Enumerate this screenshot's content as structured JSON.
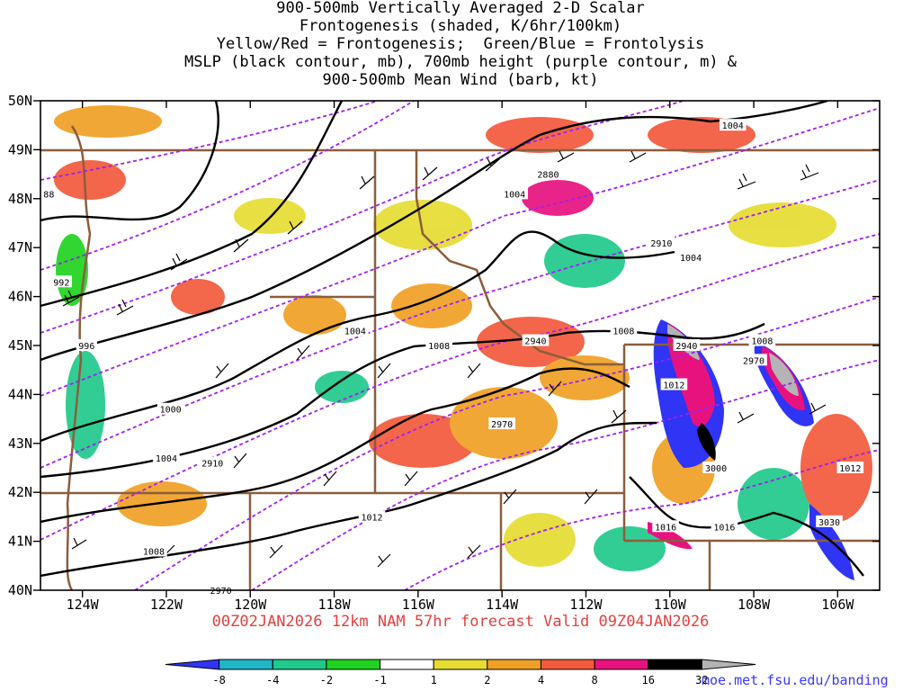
{
  "title_lines": [
    "900-500mb Vertically Averaged 2-D Scalar",
    "Frontogenesis (shaded, K/6hr/100km)",
    "Yellow/Red = Frontogenesis;  Green/Blue = Frontolysis",
    "MSLP (black contour, mb), 700mb height (purple contour, m) &",
    "900-500mb Mean Wind (barb, kt)"
  ],
  "forecast_line": "00Z02JAN2026 12km NAM 57hr forecast Valid 09Z04JAN2026",
  "credit": "moe.met.fsu.edu/banding",
  "map": {
    "lon_range": [
      -125,
      -105
    ],
    "lat_range": [
      40,
      50
    ],
    "lon_ticks": [
      "124W",
      "122W",
      "120W",
      "118W",
      "116W",
      "114W",
      "112W",
      "110W",
      "108W",
      "106W"
    ],
    "lat_ticks": [
      "50N",
      "49N",
      "48N",
      "47N",
      "46N",
      "45N",
      "44N",
      "43N",
      "42N",
      "41N",
      "40N"
    ]
  },
  "colorbar": {
    "labels": [
      "-8",
      "-4",
      "-2",
      "-1",
      "1",
      "2",
      "4",
      "8",
      "16",
      "32"
    ],
    "colors": [
      "#2f34f5",
      "#1fb6c8",
      "#20c98b",
      "#1fd21f",
      "#ffffff",
      "#e6dc32",
      "#f0a024",
      "#f25a3c",
      "#e8127e",
      "#000000",
      "#b4b4b4"
    ]
  },
  "colors": {
    "height_contour": "#a020f0",
    "mslp_contour": "#000000",
    "borders": "#8b5e3c"
  },
  "mslp_labels": [
    {
      "text": "1004",
      "lon": -108.5,
      "lat": 49.5
    },
    {
      "text": "1004",
      "lon": -113.7,
      "lat": 48.1
    },
    {
      "text": "1004",
      "lon": -109.5,
      "lat": 46.8
    },
    {
      "text": "1004",
      "lon": -117.5,
      "lat": 45.3
    },
    {
      "text": "1008",
      "lon": -115.5,
      "lat": 45.0
    },
    {
      "text": "1008",
      "lon": -111.1,
      "lat": 45.3
    },
    {
      "text": "1008",
      "lon": -107.8,
      "lat": 45.1
    },
    {
      "text": "1012",
      "lon": -109.9,
      "lat": 44.2
    },
    {
      "text": "1012",
      "lon": -105.7,
      "lat": 42.5
    },
    {
      "text": "1012",
      "lon": -117.1,
      "lat": 41.5
    },
    {
      "text": "1016",
      "lon": -110.1,
      "lat": 41.3
    },
    {
      "text": "1016",
      "lon": -108.7,
      "lat": 41.3
    },
    {
      "text": "1008",
      "lon": -122.3,
      "lat": 40.8
    },
    {
      "text": "1004",
      "lon": -122.0,
      "lat": 42.7
    },
    {
      "text": "1000",
      "lon": -121.9,
      "lat": 43.7
    },
    {
      "text": "996",
      "lon": -123.9,
      "lat": 45.0
    },
    {
      "text": "992",
      "lon": -124.5,
      "lat": 46.3
    },
    {
      "text": "88",
      "lon": -124.8,
      "lat": 48.1
    }
  ],
  "height_labels": [
    {
      "text": "2880",
      "lon": -112.9,
      "lat": 48.5
    },
    {
      "text": "2910",
      "lon": -110.2,
      "lat": 47.1
    },
    {
      "text": "2940",
      "lon": -113.2,
      "lat": 45.1
    },
    {
      "text": "2940",
      "lon": -109.6,
      "lat": 45.0
    },
    {
      "text": "2970",
      "lon": -108.0,
      "lat": 44.7
    },
    {
      "text": "2970",
      "lon": -114.0,
      "lat": 43.4
    },
    {
      "text": "2910",
      "lon": -120.9,
      "lat": 42.6
    },
    {
      "text": "2970",
      "lon": -120.7,
      "lat": 40.0
    },
    {
      "text": "3000",
      "lon": -108.9,
      "lat": 42.5
    },
    {
      "text": "3030",
      "lon": -106.2,
      "lat": 41.4
    }
  ]
}
